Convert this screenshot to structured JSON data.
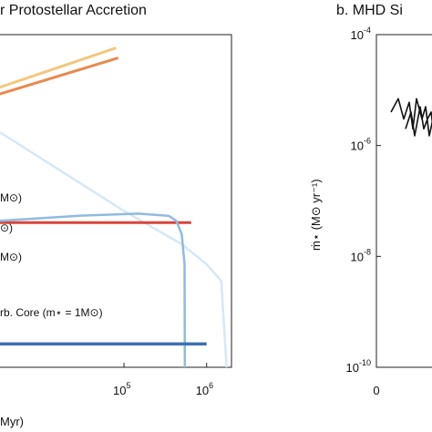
{
  "panel_a": {
    "title": "r Protostellar Accretion",
    "xlabel": "Myr)",
    "legend": [
      "M⊙)",
      "⊙)",
      "M⊙)",
      "rb. Core (m⋆ = 1M⊙)"
    ]
  },
  "panel_b": {
    "title": "b. MHD Si",
    "ylabel": "ṁ⋆ (M⊙ yr⁻¹)"
  },
  "colors": {
    "red": "#d8453a",
    "orange": "#e9894f",
    "yellow": "#f3c77d",
    "light_blue": "#8fbbe0",
    "pale_blue": "#d5e8f5",
    "dark_blue": "#3f6fb5"
  },
  "chart_data": [
    {
      "type": "line",
      "panel": "a",
      "x_scale": "log",
      "xlim": [
        3000,
        2000000
      ],
      "x_ticks": [
        {
          "value": 100000,
          "base": "10",
          "exp": "5"
        },
        {
          "value": 1000000,
          "base": "10",
          "exp": "6"
        }
      ],
      "series": [
        {
          "color": "#f3c77d",
          "x": [
            3000,
            80000
          ],
          "y": [
            0.84,
            0.96
          ]
        },
        {
          "color": "#e9894f",
          "x": [
            3000,
            85000
          ],
          "y": [
            0.82,
            0.93
          ]
        },
        {
          "color": "#d5e8f5",
          "x": [
            3000,
            20000,
            100000,
            500000,
            1000000,
            1500000,
            1750000
          ],
          "y": [
            0.71,
            0.58,
            0.47,
            0.37,
            0.31,
            0.26,
            0.0
          ]
        },
        {
          "color": "#d8453a",
          "x": [
            3000,
            650000
          ],
          "y": [
            0.435,
            0.435
          ]
        },
        {
          "color": "#8fbbe0",
          "x": [
            3000,
            30000,
            150000,
            350000,
            430000,
            500000,
            540000,
            545000
          ],
          "y": [
            0.44,
            0.456,
            0.462,
            0.455,
            0.44,
            0.4,
            0.31,
            0.0
          ]
        },
        {
          "color": "#3f6fb5",
          "x": [
            3000,
            1000000
          ],
          "y": [
            0.07,
            0.07
          ]
        }
      ]
    },
    {
      "type": "line",
      "panel": "b",
      "y_scale": "log",
      "ylim": [
        1e-10,
        0.0001
      ],
      "y_ticks": [
        {
          "value": 0.0001,
          "base": "10",
          "exp": "-4"
        },
        {
          "value": 1e-06,
          "base": "10",
          "exp": "-6"
        },
        {
          "value": 1e-08,
          "base": "10",
          "exp": "-8"
        },
        {
          "value": 1e-10,
          "base": "10",
          "exp": "-10"
        }
      ],
      "x_ticks": [
        {
          "value": 0,
          "label": "0"
        }
      ],
      "series": [
        {
          "color": "#111111",
          "x": [
            0.0,
            0.2,
            0.35,
            0.5,
            0.6,
            0.7,
            0.85,
            0.95,
            1.05,
            1.15,
            1.25,
            1.35,
            1.5
          ],
          "y": [
            4e-06,
            7e-06,
            3e-06,
            6e-06,
            2e-06,
            7e-06,
            3e-06,
            5e-06,
            1.5e-06,
            3e-06,
            5e-06,
            2e-06,
            3.5e-06
          ]
        },
        {
          "color": "#111111",
          "x": [
            0.4,
            0.55,
            0.65,
            0.8,
            0.9,
            1.0,
            1.1,
            1.2,
            1.3,
            1.45
          ],
          "y": [
            2e-06,
            4e-06,
            1.5e-06,
            5e-06,
            2e-06,
            3e-06,
            4e-06,
            1.2e-06,
            3e-06,
            2e-06
          ]
        }
      ]
    }
  ]
}
